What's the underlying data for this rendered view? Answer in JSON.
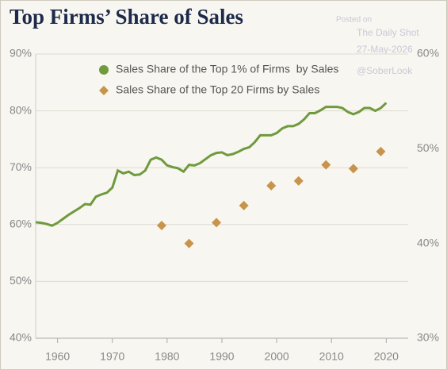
{
  "chart_data": {
    "type": "line",
    "title": "Top Firms’ Share of Sales",
    "annotations": [
      "Posted on",
      "The Daily Shot",
      "27-May-2026",
      "@SoberLook"
    ],
    "xlim": [
      1956,
      2024
    ],
    "xticks": [
      1960,
      1970,
      1980,
      1990,
      2000,
      2010,
      2020
    ],
    "ylim": [
      40,
      90
    ],
    "yticks": [
      {
        "value": 40,
        "label": "40%"
      },
      {
        "value": 50,
        "label": "50%"
      },
      {
        "value": 60,
        "label": "60%"
      },
      {
        "value": 70,
        "label": "70%"
      },
      {
        "value": 80,
        "label": "80%"
      },
      {
        "value": 90,
        "label": "90%"
      }
    ],
    "y2lim": [
      30,
      60
    ],
    "y2ticks": [
      {
        "value": 30,
        "label": "30%"
      },
      {
        "value": 40,
        "label": "40%"
      },
      {
        "value": 50,
        "label": "50%"
      },
      {
        "value": 60,
        "label": "60%"
      }
    ],
    "grid": true,
    "series": [
      {
        "name": "Sales Share of the Top 1% of Firms  by Sales",
        "color": "#6f9a3d",
        "mark": "line",
        "x": [
          1956,
          1957,
          1958,
          1959,
          1960,
          1961,
          1962,
          1963,
          1964,
          1965,
          1966,
          1967,
          1968,
          1969,
          1970,
          1971,
          1972,
          1973,
          1974,
          1975,
          1976,
          1977,
          1978,
          1979,
          1980,
          1981,
          1982,
          1983,
          1984,
          1985,
          1986,
          1987,
          1988,
          1989,
          1990,
          1991,
          1992,
          1993,
          1994,
          1995,
          1996,
          1997,
          1998,
          1999,
          2000,
          2001,
          2002,
          2003,
          2004,
          2005,
          2006,
          2007,
          2008,
          2009,
          2010,
          2011,
          2012,
          2013,
          2014,
          2015,
          2016,
          2017,
          2018,
          2019,
          2020
        ],
        "values": [
          60.4,
          60.3,
          60.1,
          59.8,
          60.3,
          61.0,
          61.7,
          62.3,
          62.9,
          63.6,
          63.5,
          64.9,
          65.3,
          65.6,
          66.5,
          69.5,
          69.0,
          69.3,
          68.7,
          68.8,
          69.5,
          71.4,
          71.8,
          71.4,
          70.4,
          70.1,
          69.9,
          69.3,
          70.5,
          70.4,
          70.8,
          71.5,
          72.2,
          72.6,
          72.7,
          72.2,
          72.4,
          72.8,
          73.3,
          73.6,
          74.5,
          75.7,
          75.7,
          75.7,
          76.1,
          76.9,
          77.3,
          77.3,
          77.7,
          78.5,
          79.6,
          79.6,
          80.1,
          80.7,
          80.7,
          80.7,
          80.5,
          79.8,
          79.4,
          79.8,
          80.5,
          80.5,
          80.0,
          80.5,
          81.4
        ]
      },
      {
        "name": "Sales Share of the Top 20 Firms by Sales",
        "color": "#c8944b",
        "mark": "diamond",
        "axis": "y2",
        "x": [
          1979,
          1984,
          1989,
          1994,
          1999,
          2004,
          2009,
          2014,
          2019
        ],
        "values": [
          41.9,
          40.0,
          42.2,
          44.0,
          46.1,
          46.6,
          48.3,
          47.9,
          49.7
        ]
      }
    ]
  }
}
